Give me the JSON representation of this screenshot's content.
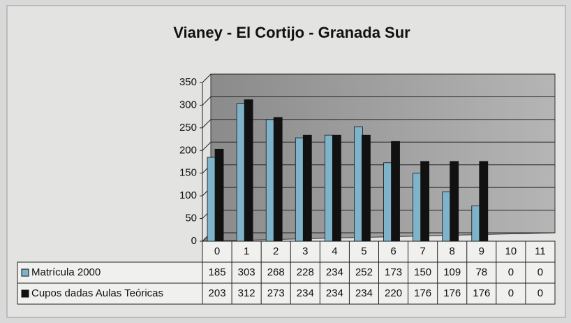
{
  "chart_data": {
    "type": "bar",
    "title": "Vianey - El Cortijo - Granada Sur",
    "categories": [
      "0",
      "1",
      "2",
      "3",
      "4",
      "5",
      "6",
      "7",
      "8",
      "9",
      "10",
      "11"
    ],
    "series": [
      {
        "name": "Matrícula 2000",
        "color": "#7fb3c9",
        "values": [
          185,
          303,
          268,
          228,
          234,
          252,
          173,
          150,
          109,
          78,
          0,
          0
        ]
      },
      {
        "name": "Cupos dadas Aulas Teóricas",
        "color": "#111111",
        "values": [
          203,
          312,
          273,
          234,
          234,
          234,
          220,
          176,
          176,
          176,
          0,
          0
        ]
      }
    ],
    "ylim": [
      0,
      350
    ],
    "yticks": [
      0,
      50,
      100,
      150,
      200,
      250,
      300,
      350
    ],
    "grid": true
  }
}
